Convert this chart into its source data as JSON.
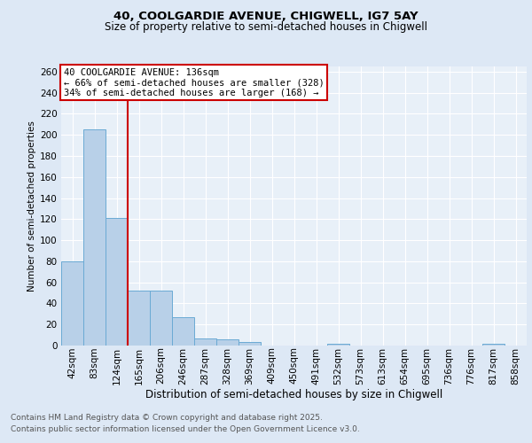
{
  "title_line1": "40, COOLGARDIE AVENUE, CHIGWELL, IG7 5AY",
  "title_line2": "Size of property relative to semi-detached houses in Chigwell",
  "xlabel": "Distribution of semi-detached houses by size in Chigwell",
  "ylabel": "Number of semi-detached properties",
  "categories": [
    "42sqm",
    "83sqm",
    "124sqm",
    "165sqm",
    "206sqm",
    "246sqm",
    "287sqm",
    "328sqm",
    "369sqm",
    "409sqm",
    "450sqm",
    "491sqm",
    "532sqm",
    "573sqm",
    "613sqm",
    "654sqm",
    "695sqm",
    "736sqm",
    "776sqm",
    "817sqm",
    "858sqm"
  ],
  "values": [
    80,
    205,
    121,
    52,
    52,
    27,
    7,
    6,
    3,
    0,
    0,
    0,
    2,
    0,
    0,
    0,
    0,
    0,
    0,
    2,
    0
  ],
  "bar_color": "#b8d0e8",
  "bar_edge_color": "#6aaad4",
  "vline_x": 2.5,
  "vline_color": "#cc0000",
  "annotation_title": "40 COOLGARDIE AVENUE: 136sqm",
  "annotation_line2": "← 66% of semi-detached houses are smaller (328)",
  "annotation_line3": "34% of semi-detached houses are larger (168) →",
  "annotation_box_color": "#cc0000",
  "ylim": [
    0,
    265
  ],
  "yticks": [
    0,
    20,
    40,
    60,
    80,
    100,
    120,
    140,
    160,
    180,
    200,
    220,
    240,
    260
  ],
  "footer_line1": "Contains HM Land Registry data © Crown copyright and database right 2025.",
  "footer_line2": "Contains public sector information licensed under the Open Government Licence v3.0.",
  "bg_color": "#dde8f5",
  "plot_bg_color": "#e8f0f8",
  "grid_color": "#ffffff",
  "title_fontsize": 9.5,
  "subtitle_fontsize": 8.5,
  "ylabel_fontsize": 7.5,
  "xlabel_fontsize": 8.5,
  "tick_fontsize": 7.5,
  "footer_fontsize": 6.5,
  "ann_fontsize": 7.5
}
